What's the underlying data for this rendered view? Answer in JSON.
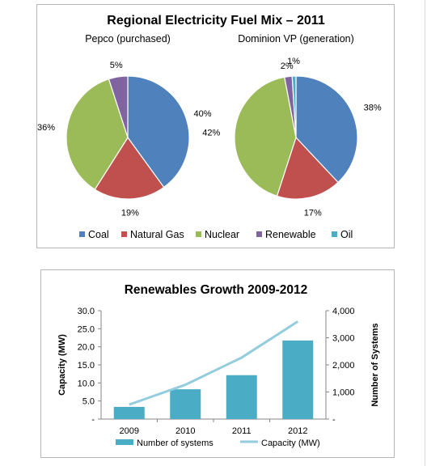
{
  "chart_data": [
    {
      "type": "pie",
      "title": "Regional Electricity Fuel Mix – 2011",
      "legend": {
        "placement": "bottom",
        "entries": [
          "Coal",
          "Natural Gas",
          "Nuclear",
          "Renewable",
          "Oil"
        ]
      },
      "colors": {
        "Coal": "#4F81BD",
        "Natural Gas": "#C0504D",
        "Nuclear": "#9BBB59",
        "Renewable": "#8064A2",
        "Oil": "#4BACC6"
      },
      "pies": [
        {
          "name": "Pepco (purchased)",
          "slices": [
            {
              "label": "Coal",
              "value": 40,
              "text": "40%"
            },
            {
              "label": "Natural Gas",
              "value": 19,
              "text": "19%"
            },
            {
              "label": "Nuclear",
              "value": 36,
              "text": "36%"
            },
            {
              "label": "Renewable",
              "value": 5,
              "text": "5%"
            }
          ]
        },
        {
          "name": "Dominion VP (generation)",
          "slices": [
            {
              "label": "Coal",
              "value": 38,
              "text": "38%"
            },
            {
              "label": "Natural Gas",
              "value": 17,
              "text": "17%"
            },
            {
              "label": "Nuclear",
              "value": 42,
              "text": "42%"
            },
            {
              "label": "Renewable",
              "value": 2,
              "text": "2%"
            },
            {
              "label": "Oil",
              "value": 1,
              "text": "1%"
            }
          ]
        }
      ]
    },
    {
      "type": "bar",
      "title": "Renewables Growth 2009-2012",
      "categories": [
        "2009",
        "2010",
        "2011",
        "2012"
      ],
      "series": [
        {
          "name": "Number of systems",
          "type": "bar",
          "axis": "right",
          "color": "#4BACC6",
          "values": [
            450,
            1100,
            1620,
            2900
          ]
        },
        {
          "name": "Capacity (MW)",
          "type": "line",
          "axis": "left",
          "color": "#93CDDD",
          "values": [
            4,
            9.5,
            17,
            27
          ]
        }
      ],
      "ylabel": "Capacity (MW)",
      "y2label": "Number of Systems",
      "ylim": [
        0,
        30
      ],
      "y2lim": [
        0,
        4000
      ],
      "yticks": [
        "-",
        "5.0",
        "10.0",
        "15.0",
        "20.0",
        "25.0",
        "30.0"
      ],
      "y2ticks": [
        "-",
        "1,000",
        "2,000",
        "3,000",
        "4,000"
      ],
      "legend": {
        "placement": "bottom",
        "entries": [
          "Number of systems",
          "Capacity (MW)"
        ]
      },
      "grid": false
    }
  ]
}
